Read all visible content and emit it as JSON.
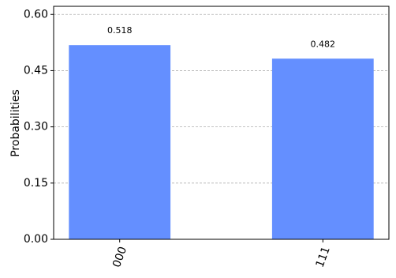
{
  "chart_data": {
    "type": "bar",
    "ylabel": "Probabilities",
    "categories": [
      "000",
      "111"
    ],
    "values": [
      0.518,
      0.482
    ],
    "color": "#648fff",
    "ylim": [
      0,
      0.6216
    ],
    "yticks": [
      {
        "value": 0,
        "label": "0.00"
      },
      {
        "value": 0.15,
        "label": "0.15"
      },
      {
        "value": 0.3,
        "label": "0.30"
      },
      {
        "value": 0.45,
        "label": "0.45"
      },
      {
        "value": 0.6,
        "label": "0.60"
      }
    ],
    "grid": true
  }
}
